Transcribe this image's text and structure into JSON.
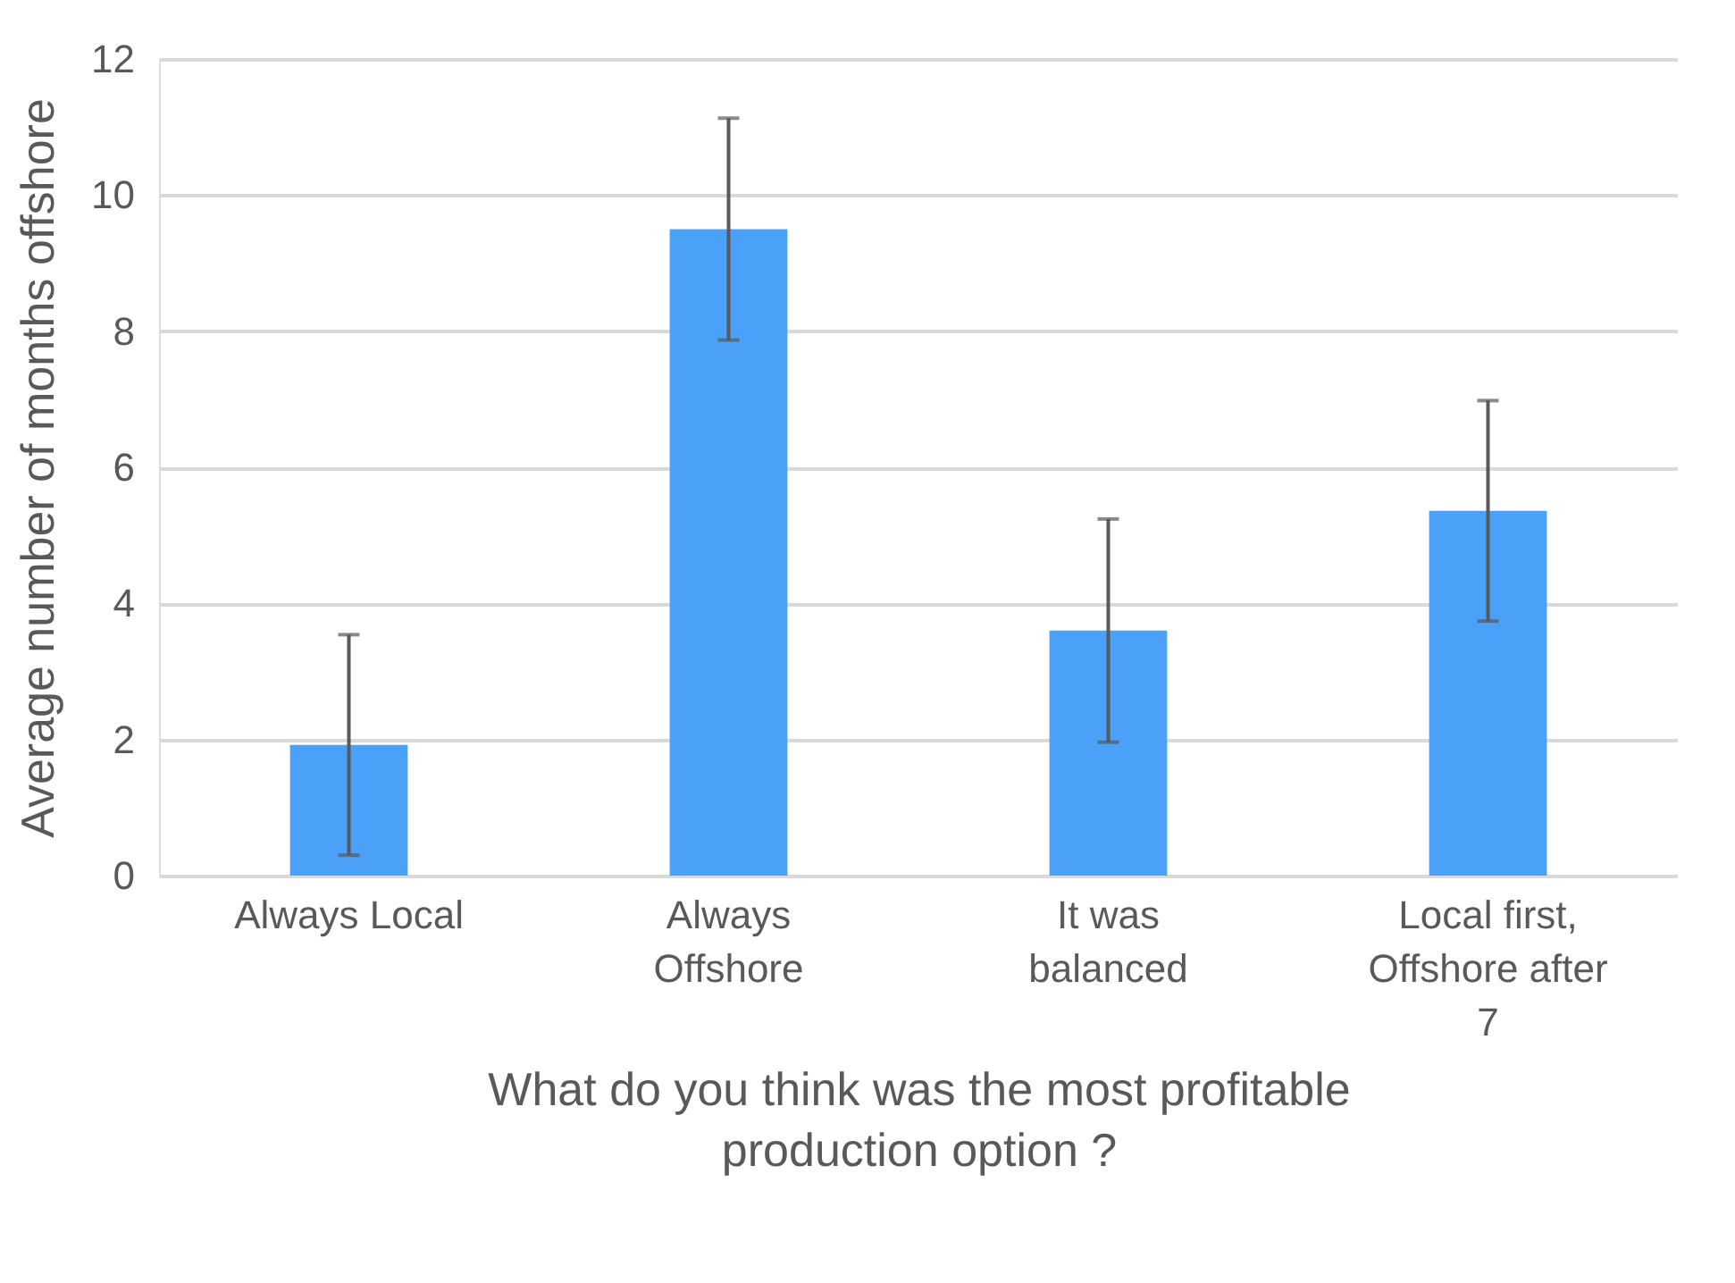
{
  "chart_data": {
    "type": "bar",
    "xlabel": "What do you think was the most profitable production option ?",
    "ylabel": "Average number of months offshore",
    "categories": [
      "Always Local",
      "Always Offshore",
      "It was balanced",
      "Local first, Offshore after 7"
    ],
    "series": [
      {
        "color": "#4aa1f7",
        "values": [
          1.92,
          9.5,
          3.6,
          5.36
        ],
        "errors": [
          1.62,
          1.63,
          1.64,
          1.62
        ]
      }
    ],
    "ylim": [
      0,
      12
    ],
    "yticks": [
      0,
      2,
      4,
      6,
      8,
      10,
      12
    ],
    "grid": "y"
  }
}
